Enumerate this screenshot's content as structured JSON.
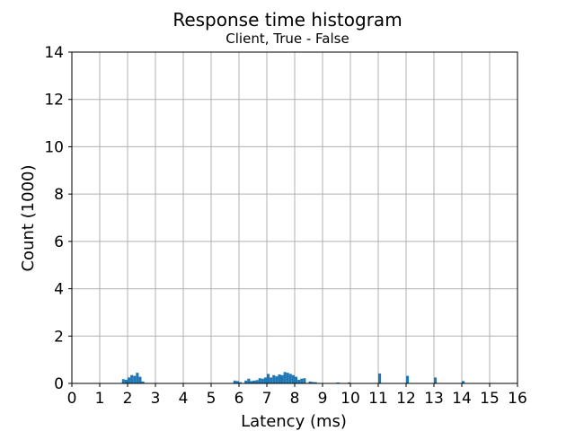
{
  "chart_data": {
    "type": "bar",
    "title": "Response time histogram",
    "subtitle": "Client, True - False",
    "xlabel": "Latency (ms)",
    "ylabel": "Count (1000)",
    "xlim": [
      0,
      16
    ],
    "ylim": [
      0,
      14
    ],
    "grid": true,
    "bar_color": "#1f77b4",
    "bin_width": 0.1,
    "x_ticks": [
      "0",
      "1",
      "2",
      "3",
      "4",
      "5",
      "6",
      "7",
      "8",
      "9",
      "10",
      "11",
      "12",
      "13",
      "14",
      "15",
      "16"
    ],
    "y_ticks": [
      "0",
      "2",
      "4",
      "6",
      "8",
      "10",
      "12",
      "14"
    ],
    "bins": [
      {
        "x": 1.8,
        "y": 0.18
      },
      {
        "x": 1.9,
        "y": 0.15
      },
      {
        "x": 2.0,
        "y": 0.25
      },
      {
        "x": 2.1,
        "y": 0.35
      },
      {
        "x": 2.2,
        "y": 0.32
      },
      {
        "x": 2.3,
        "y": 0.45
      },
      {
        "x": 2.4,
        "y": 0.28
      },
      {
        "x": 2.5,
        "y": 0.08
      },
      {
        "x": 5.8,
        "y": 0.12
      },
      {
        "x": 5.9,
        "y": 0.1
      },
      {
        "x": 6.0,
        "y": 0.05
      },
      {
        "x": 6.2,
        "y": 0.12
      },
      {
        "x": 6.3,
        "y": 0.2
      },
      {
        "x": 6.4,
        "y": 0.1
      },
      {
        "x": 6.5,
        "y": 0.12
      },
      {
        "x": 6.6,
        "y": 0.14
      },
      {
        "x": 6.7,
        "y": 0.22
      },
      {
        "x": 6.8,
        "y": 0.2
      },
      {
        "x": 6.9,
        "y": 0.25
      },
      {
        "x": 7.0,
        "y": 0.4
      },
      {
        "x": 7.1,
        "y": 0.25
      },
      {
        "x": 7.2,
        "y": 0.35
      },
      {
        "x": 7.3,
        "y": 0.3
      },
      {
        "x": 7.4,
        "y": 0.38
      },
      {
        "x": 7.5,
        "y": 0.35
      },
      {
        "x": 7.6,
        "y": 0.48
      },
      {
        "x": 7.7,
        "y": 0.45
      },
      {
        "x": 7.8,
        "y": 0.4
      },
      {
        "x": 7.9,
        "y": 0.35
      },
      {
        "x": 8.0,
        "y": 0.28
      },
      {
        "x": 8.1,
        "y": 0.15
      },
      {
        "x": 8.2,
        "y": 0.2
      },
      {
        "x": 8.3,
        "y": 0.22
      },
      {
        "x": 8.5,
        "y": 0.08
      },
      {
        "x": 8.6,
        "y": 0.06
      },
      {
        "x": 8.7,
        "y": 0.05
      },
      {
        "x": 9.5,
        "y": 0.04
      },
      {
        "x": 9.9,
        "y": 0.04
      },
      {
        "x": 11.0,
        "y": 0.42
      },
      {
        "x": 12.0,
        "y": 0.32
      },
      {
        "x": 13.0,
        "y": 0.25
      },
      {
        "x": 14.0,
        "y": 0.1
      }
    ]
  }
}
